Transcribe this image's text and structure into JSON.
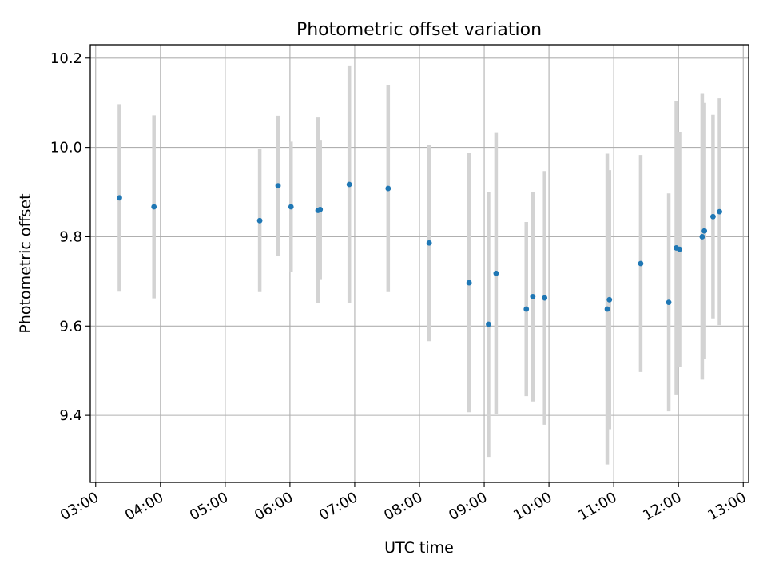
{
  "chart_data": {
    "type": "scatter",
    "title": "Photometric offset variation",
    "xlabel": "UTC time",
    "ylabel": "Photometric offset",
    "x_axis_type": "time",
    "xlim": [
      "02:55",
      "13:05"
    ],
    "ylim": [
      9.25,
      10.23
    ],
    "x_ticks": [
      "03:00",
      "04:00",
      "05:00",
      "06:00",
      "07:00",
      "08:00",
      "09:00",
      "10:00",
      "11:00",
      "12:00",
      "13:00"
    ],
    "y_ticks": [
      9.4,
      9.6,
      9.8,
      10.0,
      10.2
    ],
    "y_tick_labels": [
      "9.4",
      "9.6",
      "9.8",
      "10.0",
      "10.2"
    ],
    "grid": true,
    "point_color": "#1f77b4",
    "errorbar_color": "#d3d3d3",
    "points": [
      {
        "x": "03:22",
        "y": 9.887,
        "err": 0.21
      },
      {
        "x": "03:54",
        "y": 9.867,
        "err": 0.205
      },
      {
        "x": "05:32",
        "y": 9.836,
        "err": 0.16
      },
      {
        "x": "05:49",
        "y": 9.914,
        "err": 0.157
      },
      {
        "x": "06:01",
        "y": 9.867,
        "err": 0.146
      },
      {
        "x": "06:26",
        "y": 9.859,
        "err": 0.208
      },
      {
        "x": "06:28",
        "y": 9.861,
        "err": 0.156
      },
      {
        "x": "06:55",
        "y": 9.917,
        "err": 0.265
      },
      {
        "x": "07:31",
        "y": 9.908,
        "err": 0.232
      },
      {
        "x": "08:09",
        "y": 9.786,
        "err": 0.22
      },
      {
        "x": "08:46",
        "y": 9.697,
        "err": 0.29
      },
      {
        "x": "09:04",
        "y": 9.604,
        "err": 0.297
      },
      {
        "x": "09:11",
        "y": 9.718,
        "err": 0.316
      },
      {
        "x": "09:39",
        "y": 9.638,
        "err": 0.195
      },
      {
        "x": "09:45",
        "y": 9.666,
        "err": 0.235
      },
      {
        "x": "09:56",
        "y": 9.663,
        "err": 0.284
      },
      {
        "x": "10:54",
        "y": 9.638,
        "err": 0.348
      },
      {
        "x": "10:56",
        "y": 9.659,
        "err": 0.29
      },
      {
        "x": "11:25",
        "y": 9.74,
        "err": 0.243
      },
      {
        "x": "11:51",
        "y": 9.653,
        "err": 0.244
      },
      {
        "x": "11:58",
        "y": 9.775,
        "err": 0.328
      },
      {
        "x": "12:01",
        "y": 9.772,
        "err": 0.263
      },
      {
        "x": "12:22",
        "y": 9.8,
        "err": 0.32
      },
      {
        "x": "12:24",
        "y": 9.813,
        "err": 0.287
      },
      {
        "x": "12:32",
        "y": 9.845,
        "err": 0.228
      },
      {
        "x": "12:38",
        "y": 9.856,
        "err": 0.254
      }
    ]
  }
}
